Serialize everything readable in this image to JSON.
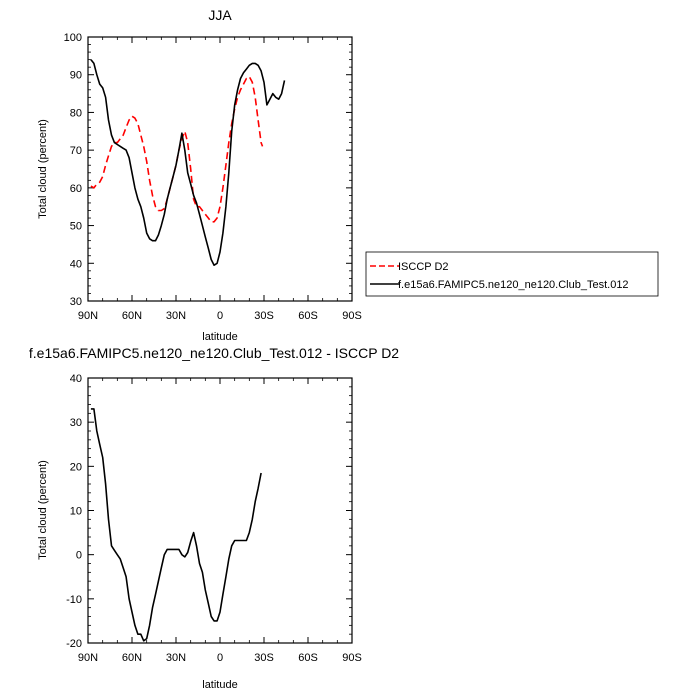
{
  "chart_data": [
    {
      "type": "line",
      "title": "JJA",
      "xlabel": "latitude",
      "ylabel": "Total cloud (percent)",
      "xlim": [
        90,
        -90
      ],
      "ylim": [
        30,
        100
      ],
      "xticks": [
        "90N",
        "60N",
        "30N",
        "0",
        "30S",
        "60S",
        "90S"
      ],
      "yticks": [
        "30",
        "40",
        "50",
        "60",
        "70",
        "80",
        "90",
        "100"
      ],
      "legend": "right",
      "series": [
        {
          "name": "ISCCP D2",
          "color": "#ff0000",
          "style": "dashed",
          "points": [
            [
              88,
              60.5
            ],
            [
              86,
              60
            ],
            [
              84,
              61
            ],
            [
              82,
              61.5
            ],
            [
              80,
              63
            ],
            [
              78,
              66
            ],
            [
              76,
              68.5
            ],
            [
              74,
              71
            ],
            [
              72,
              72
            ],
            [
              70,
              72
            ],
            [
              68,
              73
            ],
            [
              66,
              74
            ],
            [
              64,
              76
            ],
            [
              62,
              78
            ],
            [
              60,
              79
            ],
            [
              58,
              78.5
            ],
            [
              56,
              77
            ],
            [
              54,
              74
            ],
            [
              52,
              71
            ],
            [
              50,
              67
            ],
            [
              48,
              62
            ],
            [
              46,
              58
            ],
            [
              44,
              55
            ],
            [
              42,
              54
            ],
            [
              40,
              54
            ],
            [
              38,
              54.5
            ],
            [
              36,
              57
            ],
            [
              34,
              60
            ],
            [
              32,
              63
            ],
            [
              30,
              66
            ],
            [
              28,
              70
            ],
            [
              26,
              73
            ],
            [
              24,
              75
            ],
            [
              22,
              72
            ],
            [
              20,
              65
            ],
            [
              18,
              57
            ],
            [
              16,
              55
            ],
            [
              14,
              55
            ],
            [
              12,
              54
            ],
            [
              10,
              53
            ],
            [
              8,
              52
            ],
            [
              6,
              51
            ],
            [
              4,
              51
            ],
            [
              2,
              52
            ],
            [
              0,
              55
            ],
            [
              -2,
              60
            ],
            [
              -4,
              66
            ],
            [
              -6,
              72
            ],
            [
              -8,
              77
            ],
            [
              -10,
              81
            ],
            [
              -12,
              84
            ],
            [
              -14,
              86
            ],
            [
              -16,
              87.5
            ],
            [
              -18,
              89
            ],
            [
              -20,
              89.5
            ],
            [
              -22,
              88
            ],
            [
              -24,
              84
            ],
            [
              -26,
              78
            ],
            [
              -28,
              72
            ],
            [
              -29,
              71
            ]
          ]
        },
        {
          "name": "f.e15a6.FAMIPC5.ne120_ne120.Club_Test.012",
          "color": "#000000",
          "style": "solid",
          "points": [
            [
              88,
              94
            ],
            [
              86,
              93
            ],
            [
              84,
              90
            ],
            [
              82,
              87.5
            ],
            [
              80,
              86.5
            ],
            [
              78,
              84
            ],
            [
              76,
              78
            ],
            [
              74,
              74
            ],
            [
              72,
              72
            ],
            [
              70,
              71.5
            ],
            [
              68,
              71
            ],
            [
              66,
              70.5
            ],
            [
              64,
              70
            ],
            [
              62,
              68
            ],
            [
              60,
              64
            ],
            [
              58,
              60
            ],
            [
              56,
              57
            ],
            [
              54,
              55
            ],
            [
              52,
              52
            ],
            [
              50,
              48
            ],
            [
              48,
              46.5
            ],
            [
              46,
              46
            ],
            [
              44,
              46
            ],
            [
              42,
              47.5
            ],
            [
              40,
              50
            ],
            [
              38,
              53
            ],
            [
              36,
              57
            ],
            [
              34,
              60
            ],
            [
              32,
              63
            ],
            [
              30,
              66
            ],
            [
              28,
              70
            ],
            [
              26,
              74.5
            ],
            [
              24,
              70
            ],
            [
              22,
              64
            ],
            [
              20,
              61
            ],
            [
              18,
              58
            ],
            [
              16,
              56
            ],
            [
              14,
              53
            ],
            [
              12,
              50
            ],
            [
              10,
              47
            ],
            [
              8,
              44
            ],
            [
              6,
              41
            ],
            [
              4,
              39.5
            ],
            [
              2,
              40
            ],
            [
              0,
              43
            ],
            [
              -2,
              48
            ],
            [
              -4,
              55
            ],
            [
              -6,
              64
            ],
            [
              -8,
              75
            ],
            [
              -10,
              82
            ],
            [
              -12,
              86
            ],
            [
              -14,
              89
            ],
            [
              -16,
              90.5
            ],
            [
              -18,
              91.5
            ],
            [
              -20,
              92.5
            ],
            [
              -22,
              93
            ],
            [
              -24,
              93
            ],
            [
              -26,
              92.5
            ],
            [
              -28,
              91
            ],
            [
              -30,
              88
            ],
            [
              -32,
              82
            ],
            [
              -34,
              83.5
            ],
            [
              -36,
              85
            ],
            [
              -38,
              84
            ],
            [
              -40,
              83.5
            ],
            [
              -42,
              85
            ],
            [
              -44,
              88.5
            ]
          ]
        }
      ]
    },
    {
      "type": "line",
      "title": "f.e15a6.FAMIPC5.ne120_ne120.Club_Test.012 - ISCCP D2",
      "xlabel": "latitude",
      "ylabel": "Total cloud (percent)",
      "xlim": [
        90,
        -90
      ],
      "ylim": [
        -20,
        40
      ],
      "xticks": [
        "90N",
        "60N",
        "30N",
        "0",
        "30S",
        "60S",
        "90S"
      ],
      "yticks": [
        "-20",
        "-10",
        "0",
        "10",
        "20",
        "30",
        "40"
      ],
      "series": [
        {
          "color": "#000000",
          "style": "solid",
          "points": [
            [
              88,
              33
            ],
            [
              86,
              33
            ],
            [
              84,
              28
            ],
            [
              82,
              25
            ],
            [
              80,
              22
            ],
            [
              78,
              16
            ],
            [
              76,
              8
            ],
            [
              74,
              2
            ],
            [
              72,
              1
            ],
            [
              70,
              0
            ],
            [
              68,
              -1
            ],
            [
              66,
              -3
            ],
            [
              64,
              -5
            ],
            [
              62,
              -10
            ],
            [
              60,
              -13
            ],
            [
              58,
              -16
            ],
            [
              56,
              -18
            ],
            [
              54,
              -18
            ],
            [
              52,
              -19.5
            ],
            [
              50,
              -19
            ],
            [
              48,
              -16
            ],
            [
              46,
              -12
            ],
            [
              44,
              -9
            ],
            [
              42,
              -6
            ],
            [
              40,
              -3
            ],
            [
              38,
              0
            ],
            [
              36,
              1.2
            ],
            [
              34,
              1.2
            ],
            [
              32,
              1.2
            ],
            [
              30,
              1.2
            ],
            [
              28,
              1.2
            ],
            [
              26,
              0
            ],
            [
              24,
              -0.5
            ],
            [
              22,
              0.5
            ],
            [
              20,
              3
            ],
            [
              18,
              5
            ],
            [
              16,
              2
            ],
            [
              14,
              -2
            ],
            [
              12,
              -4
            ],
            [
              10,
              -8
            ],
            [
              8,
              -11
            ],
            [
              6,
              -14
            ],
            [
              4,
              -15
            ],
            [
              2,
              -15
            ],
            [
              0,
              -13
            ],
            [
              -2,
              -9
            ],
            [
              -4,
              -5
            ],
            [
              -6,
              -1
            ],
            [
              -8,
              2
            ],
            [
              -10,
              3.2
            ],
            [
              -12,
              3.2
            ],
            [
              -14,
              3.2
            ],
            [
              -16,
              3.2
            ],
            [
              -18,
              3.2
            ],
            [
              -20,
              5
            ],
            [
              -22,
              8
            ],
            [
              -24,
              12
            ],
            [
              -26,
              15
            ],
            [
              -28,
              18.5
            ]
          ]
        }
      ]
    }
  ]
}
